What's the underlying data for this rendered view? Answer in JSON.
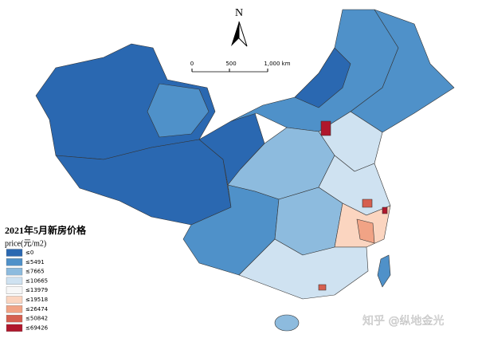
{
  "north": "N",
  "scale_bar": {
    "labels": [
      "0",
      "500",
      "1,000 km"
    ]
  },
  "legend": {
    "title": "2021年5月新房价格",
    "subtitle": "price(元/m2)",
    "items": [
      {
        "label": "≤0",
        "color": "#2a68b1"
      },
      {
        "label": "≤5491",
        "color": "#4f91c9"
      },
      {
        "label": "≤7665",
        "color": "#8dbbde"
      },
      {
        "label": "≤10665",
        "color": "#cfe2f1"
      },
      {
        "label": "≤13979",
        "color": "#f7f7f7"
      },
      {
        "label": "≤19518",
        "color": "#fbd5c0"
      },
      {
        "label": "≤26474",
        "color": "#f1a385"
      },
      {
        "label": "≤50842",
        "color": "#d65f4f"
      },
      {
        "label": "≤69426",
        "color": "#b0172c"
      }
    ]
  },
  "watermark": "知乎 @纵地金光"
}
